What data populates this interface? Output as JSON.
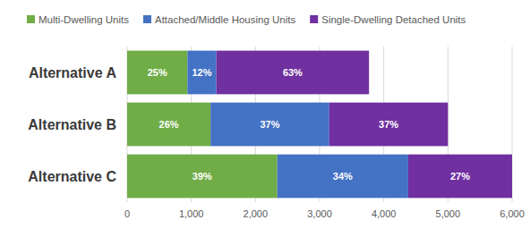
{
  "chart_data": {
    "type": "bar",
    "orientation": "horizontal",
    "stacked": true,
    "categories": [
      "Alternative A",
      "Alternative B",
      "Alternative C"
    ],
    "series": [
      {
        "name": "Multi-Dwelling Units",
        "color": "#70ad47",
        "values": [
          940,
          1300,
          2340
        ],
        "share_labels": [
          "25%",
          "26%",
          "39%"
        ]
      },
      {
        "name": "Attached/Middle Housing Units",
        "color": "#4472c4",
        "values": [
          450,
          1850,
          2040
        ],
        "share_labels": [
          "12%",
          "37%",
          "34%"
        ]
      },
      {
        "name": "Single-Dwelling Detached Units",
        "color": "#7030a0",
        "values": [
          2380,
          1850,
          1620
        ],
        "share_labels": [
          "63%",
          "37%",
          "27%"
        ]
      }
    ],
    "xlim": [
      0,
      6000
    ],
    "xticks": [
      0,
      {
        "value": 1000,
        "label": "1,000"
      },
      {
        "value": 2000,
        "label": "2,000"
      },
      {
        "value": 3000,
        "label": "3,000"
      },
      {
        "value": 4000,
        "label": "4,000"
      },
      {
        "value": 5000,
        "label": "5,000"
      },
      {
        "value": 6000,
        "label": "6,000"
      }
    ],
    "grid": true,
    "legend": "top"
  }
}
